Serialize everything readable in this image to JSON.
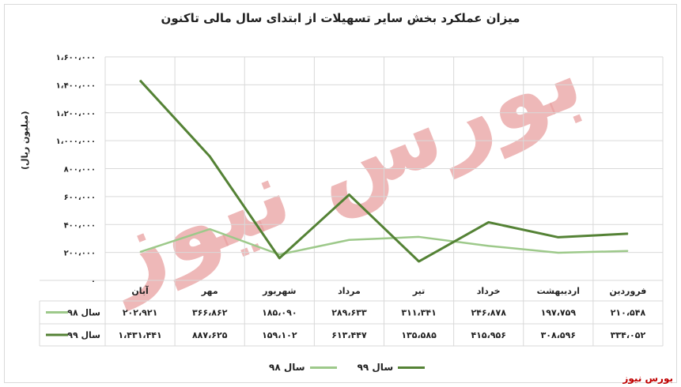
{
  "chart_data": {
    "type": "line",
    "title": "میزان عملکرد بخش سایر تسهیلات از ابتدای سال مالی تاکنون",
    "ylabel": "(میلیون ریال)",
    "categories": [
      "فروردین",
      "اردیبهشت",
      "خرداد",
      "تیر",
      "مرداد",
      "شهریور",
      "مهر",
      "آبان"
    ],
    "ylim": [
      0,
      1600000
    ],
    "yticks": [
      0,
      200000,
      400000,
      600000,
      800000,
      1000000,
      1200000,
      1400000,
      1600000
    ],
    "ytick_labels": [
      "۰",
      "۲۰۰،۰۰۰",
      "۴۰۰،۰۰۰",
      "۶۰۰،۰۰۰",
      "۸۰۰،۰۰۰",
      "۱،۰۰۰،۰۰۰",
      "۱،۲۰۰،۰۰۰",
      "۱،۴۰۰،۰۰۰",
      "۱،۶۰۰،۰۰۰"
    ],
    "grid": true,
    "legend_position": "bottom",
    "series": [
      {
        "name": "سال ۹۸",
        "color": "#9dc98a",
        "values": [
          210548,
          197759,
          246878,
          311341,
          289633,
          185090,
          366862,
          202921
        ],
        "labels": [
          "۲۱۰،۵۴۸",
          "۱۹۷،۷۵۹",
          "۲۴۶،۸۷۸",
          "۳۱۱،۳۴۱",
          "۲۸۹،۶۳۳",
          "۱۸۵،۰۹۰",
          "۳۶۶،۸۶۲",
          "۲۰۲،۹۲۱"
        ]
      },
      {
        "name": "سال ۹۹",
        "color": "#548235",
        "values": [
          334052,
          308596,
          415956,
          135585,
          613447,
          159102,
          887625,
          1431441
        ],
        "labels": [
          "۳۳۴،۰۵۲",
          "۳۰۸،۵۹۶",
          "۴۱۵،۹۵۶",
          "۱۳۵،۵۸۵",
          "۶۱۳،۴۴۷",
          "۱۵۹،۱۰۲",
          "۸۸۷،۶۲۵",
          "۱،۴۳۱،۴۴۱"
        ]
      }
    ]
  },
  "source": "بورس نیوز",
  "watermark": "بورس نیوز"
}
